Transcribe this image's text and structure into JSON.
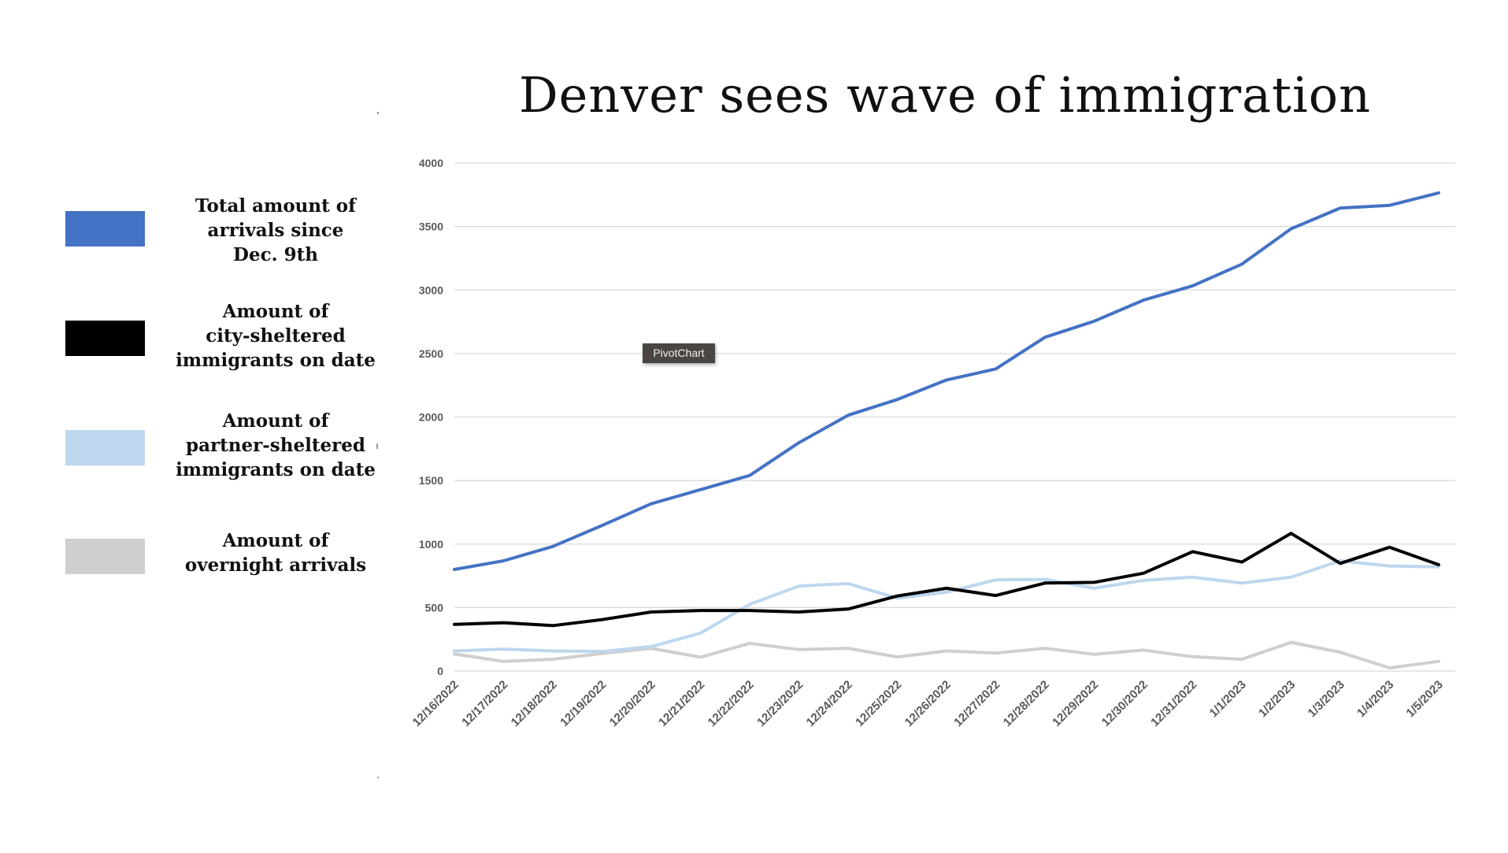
{
  "chart_data": {
    "type": "line",
    "title": "Denver sees wave of immigration",
    "xlabel": "",
    "ylabel": "",
    "ylim": [
      0,
      4000
    ],
    "yticks": [
      "0",
      "500",
      "1000",
      "1500",
      "2000",
      "2500",
      "3000",
      "3500",
      "4000"
    ],
    "ytick_values": [
      0,
      500,
      1000,
      1500,
      2000,
      2500,
      3000,
      3500,
      4000
    ],
    "grid": true,
    "legend_position": "left",
    "categories": [
      "12/16/2022",
      "12/17/2022",
      "12/18/2022",
      "12/19/2022",
      "12/20/2022",
      "12/21/2022",
      "12/22/2022",
      "12/23/2022",
      "12/24/2022",
      "12/25/2022",
      "12/26/2022",
      "12/27/2022",
      "12/28/2022",
      "12/29/2022",
      "12/30/2022",
      "12/31/2022",
      "1/1/2023",
      "1/2/2023",
      "1/3/2023",
      "1/4/2023",
      "1/5/2023"
    ],
    "series": [
      {
        "name": "Total amount of arrivals since Dec. 9th",
        "color": "#4472c4",
        "values": [
          800,
          868,
          981,
          1146,
          1317,
          1428,
          1540,
          1798,
          2014,
          2138,
          2292,
          2379,
          2628,
          2755,
          2920,
          3033,
          3204,
          3482,
          3646,
          3667,
          3765
        ]
      },
      {
        "name": "Amount of city-sheltered immigrants on date",
        "color": "#000000",
        "values": [
          368,
          381,
          358,
          405,
          465,
          477,
          477,
          465,
          488,
          591,
          652,
          595,
          693,
          698,
          770,
          940,
          858,
          1084,
          848,
          975,
          837
        ]
      },
      {
        "name": "Amount of partner-sheltered immigrants on date",
        "color": "#bdd7ee",
        "values": [
          158,
          173,
          158,
          154,
          193,
          298,
          525,
          669,
          689,
          574,
          621,
          718,
          722,
          652,
          714,
          739,
          693,
          739,
          868,
          827,
          821
        ]
      },
      {
        "name": "Amount of overnight arrivals",
        "color": "#d0cece",
        "values": [
          134,
          76,
          93,
          138,
          179,
          109,
          218,
          169,
          179,
          111,
          158,
          142,
          179,
          132,
          165,
          113,
          93,
          226,
          148,
          25,
          76
        ]
      }
    ]
  },
  "legend": [
    {
      "label": "Total amount of\narrivals since\nDec. 9th",
      "color": "#4472c4"
    },
    {
      "label": "Amount of\ncity-sheltered\nimmigrants on date",
      "color": "#000000"
    },
    {
      "label": "Amount of\npartner-sheltered\nimmigrants on date",
      "color": "#bdd7ee"
    },
    {
      "label": "Amount of\novernight arrivals",
      "color": "#d0cece"
    }
  ],
  "tooltip": {
    "text": "PivotChart"
  }
}
